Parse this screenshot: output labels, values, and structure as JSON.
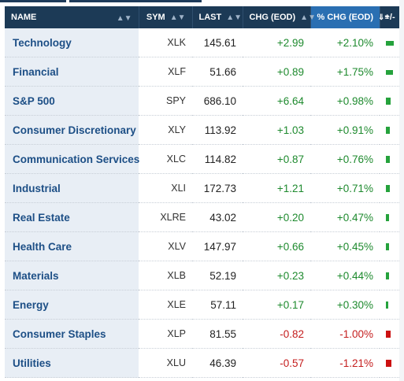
{
  "columns": {
    "name": "NAME",
    "sym": "SYM",
    "last": "LAST",
    "chg": "CHG (EOD)",
    "pct": "% CHG (EOD)",
    "plusminus": "+/-"
  },
  "colors": {
    "up": "#1e8a2e",
    "down": "#c41d1d",
    "header": "#1c3a56",
    "active_header": "#2a6fb2"
  },
  "rows": [
    {
      "name": "Technology",
      "sym": "XLK",
      "last": "145.61",
      "chg": "+2.99",
      "pct": "+2.10%",
      "dir": "up",
      "magnitude": 2.1
    },
    {
      "name": "Financial",
      "sym": "XLF",
      "last": "51.66",
      "chg": "+0.89",
      "pct": "+1.75%",
      "dir": "up",
      "magnitude": 1.75
    },
    {
      "name": "S&P 500",
      "sym": "SPY",
      "last": "686.10",
      "chg": "+6.64",
      "pct": "+0.98%",
      "dir": "up",
      "magnitude": 0.98
    },
    {
      "name": "Consumer Discretionary",
      "sym": "XLY",
      "last": "113.92",
      "chg": "+1.03",
      "pct": "+0.91%",
      "dir": "up",
      "magnitude": 0.91
    },
    {
      "name": "Communication Services",
      "sym": "XLC",
      "last": "114.82",
      "chg": "+0.87",
      "pct": "+0.76%",
      "dir": "up",
      "magnitude": 0.76
    },
    {
      "name": "Industrial",
      "sym": "XLI",
      "last": "172.73",
      "chg": "+1.21",
      "pct": "+0.71%",
      "dir": "up",
      "magnitude": 0.71
    },
    {
      "name": "Real Estate",
      "sym": "XLRE",
      "last": "43.02",
      "chg": "+0.20",
      "pct": "+0.47%",
      "dir": "up",
      "magnitude": 0.47
    },
    {
      "name": "Health Care",
      "sym": "XLV",
      "last": "147.97",
      "chg": "+0.66",
      "pct": "+0.45%",
      "dir": "up",
      "magnitude": 0.45
    },
    {
      "name": "Materials",
      "sym": "XLB",
      "last": "52.19",
      "chg": "+0.23",
      "pct": "+0.44%",
      "dir": "up",
      "magnitude": 0.44
    },
    {
      "name": "Energy",
      "sym": "XLE",
      "last": "57.11",
      "chg": "+0.17",
      "pct": "+0.30%",
      "dir": "up",
      "magnitude": 0.3
    },
    {
      "name": "Consumer Staples",
      "sym": "XLP",
      "last": "81.55",
      "chg": "-0.82",
      "pct": "-1.00%",
      "dir": "down",
      "magnitude": 1.0
    },
    {
      "name": "Utilities",
      "sym": "XLU",
      "last": "46.39",
      "chg": "-0.57",
      "pct": "-1.21%",
      "dir": "down",
      "magnitude": 1.21
    }
  ]
}
